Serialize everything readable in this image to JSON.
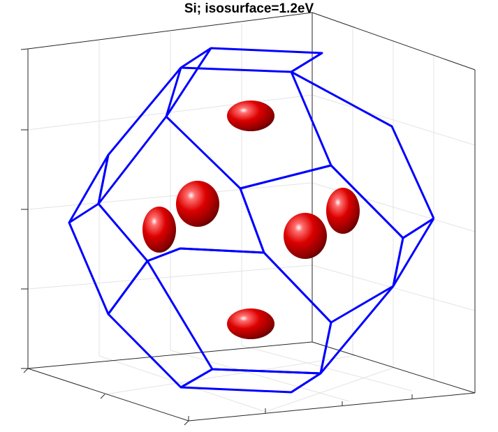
{
  "title": "Si; isosurface=1.2eV",
  "chart_data": {
    "type": "3d-isosurface",
    "title": "Si; isosurface=1.2eV",
    "isosurface_value": "1.2eV",
    "xlabel": "",
    "ylabel": "",
    "zlabel": "",
    "grid": true,
    "tick_labels_shown": false,
    "structure": "Brillouin zone (truncated octahedron wireframe)",
    "isosurface_pockets": 6,
    "colors": {
      "wireframe": "#0000ff",
      "isosurface": "#cc0000",
      "axes": "#000000",
      "grid": "#e6e6e6"
    }
  }
}
